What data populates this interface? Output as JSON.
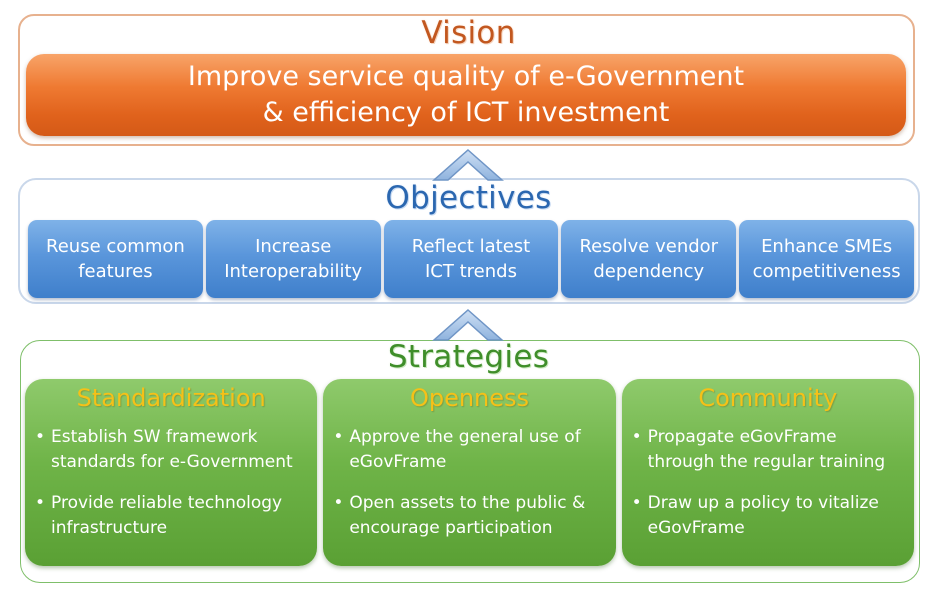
{
  "vision": {
    "heading": "Vision",
    "lines": [
      "Improve service quality of e-Government",
      "& efficiency of ICT investment"
    ]
  },
  "objectives": {
    "heading": "Objectives",
    "items": [
      "Reuse common\nfeatures",
      "Increase\nInteroperability",
      "Reflect latest\nICT trends",
      "Resolve vendor\ndependency",
      "Enhance SMEs\ncompetitiveness"
    ]
  },
  "strategies": {
    "heading": "Strategies",
    "columns": [
      {
        "title": "Standardization",
        "items": [
          "Establish SW framework\nstandards for e-Government",
          "Provide  reliable technology\ninfrastructure"
        ]
      },
      {
        "title": "Openness",
        "items": [
          "Approve the general use of\neGovFrame",
          "Open assets to the public &\nencourage participation"
        ]
      },
      {
        "title": "Community",
        "items": [
          "Propagate eGovFrame\nthrough the regular training",
          "Draw up a policy to vitalize\neGovFrame"
        ]
      }
    ]
  },
  "colors": {
    "vision_accent": "#e0621c",
    "objectives_accent": "#4f8ad3",
    "strategies_accent": "#6fb448",
    "strategy_title": "#f5c118"
  },
  "icons": [
    "chevron-up-icon",
    "chevron-up-icon"
  ]
}
